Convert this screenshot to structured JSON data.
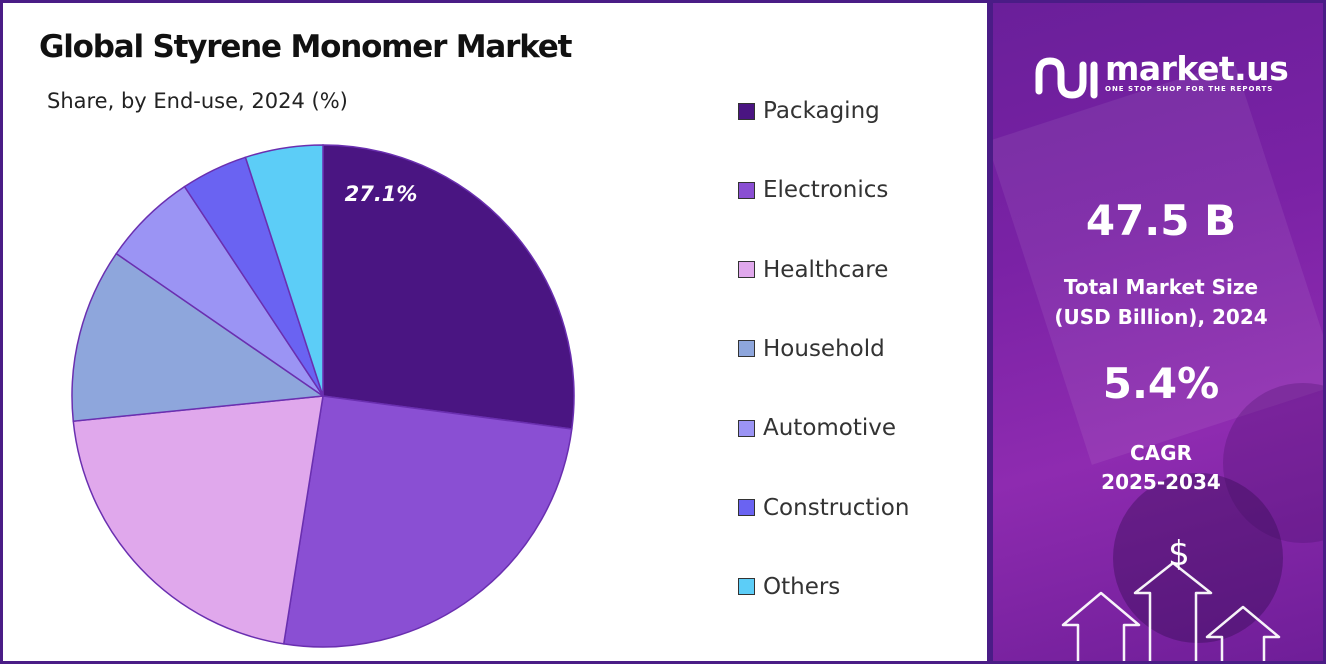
{
  "chart_data": {
    "type": "pie",
    "title": "Global Styrene Monomer Market",
    "subtitle": "Share, by End-use, 2024 (%)",
    "categories": [
      "Packaging",
      "Electronics",
      "Healthcare",
      "Household",
      "Automotive",
      "Construction",
      "Others"
    ],
    "values": [
      27.1,
      25.4,
      20.9,
      11.2,
      6.1,
      4.3,
      5.0
    ],
    "colors": [
      "#4a1582",
      "#8a4fd3",
      "#e0a8ec",
      "#8ea6dc",
      "#9b94f4",
      "#6a63f2",
      "#5ccdf7"
    ],
    "data_labels": [
      "27.1%",
      "",
      "",
      "",
      "",
      "",
      ""
    ],
    "start_angle_deg": 0,
    "direction": "clockwise",
    "legend_position": "right"
  },
  "legend": {
    "items": [
      {
        "label": "Packaging",
        "color": "#4a1582"
      },
      {
        "label": "Electronics",
        "color": "#8a4fd3"
      },
      {
        "label": "Healthcare",
        "color": "#e0a8ec"
      },
      {
        "label": "Household",
        "color": "#8ea6dc"
      },
      {
        "label": "Automotive",
        "color": "#9b94f4"
      },
      {
        "label": "Construction",
        "color": "#6a63f2"
      },
      {
        "label": "Others",
        "color": "#5ccdf7"
      }
    ]
  },
  "brand": {
    "name": "market.us",
    "tagline": "ONE STOP SHOP FOR THE REPORTS"
  },
  "stats": {
    "market_size_value": "47.5 B",
    "market_size_label_line1": "Total Market Size",
    "market_size_label_line2": "(USD Billion), 2024",
    "cagr_value": "5.4%",
    "cagr_label_line1": "CAGR",
    "cagr_label_line2": "2025-2034"
  },
  "decor": {
    "currency_symbol": "$",
    "icon": "growth-arrows-icon"
  }
}
